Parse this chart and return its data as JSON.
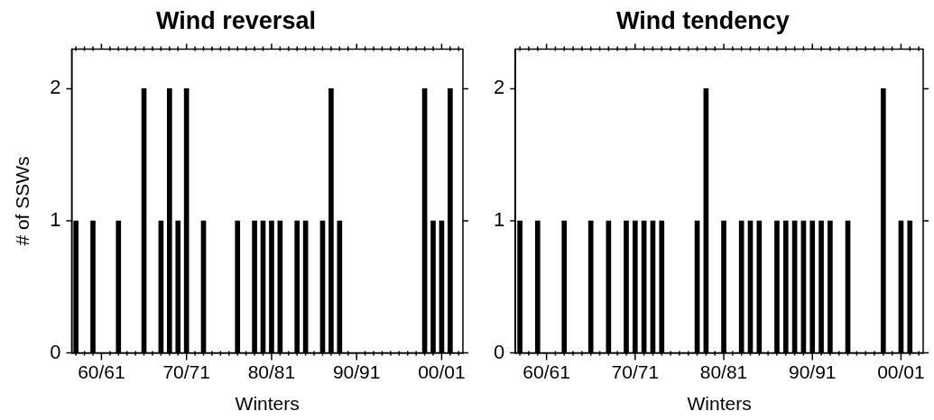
{
  "chart_data": [
    {
      "type": "bar",
      "title": "Wind reversal",
      "xlabel": "Winters",
      "ylabel": "# of SSWs",
      "color": "#000000",
      "categories": [
        null,
        null,
        null,
        "60/61",
        null,
        null,
        null,
        null,
        null,
        null,
        null,
        null,
        null,
        "70/71",
        null,
        null,
        null,
        null,
        null,
        null,
        null,
        null,
        null,
        "80/81",
        null,
        null,
        null,
        null,
        null,
        null,
        null,
        null,
        null,
        "90/91",
        null,
        null,
        null,
        null,
        null,
        null,
        null,
        null,
        null,
        "00/01",
        null,
        null
      ],
      "values": [
        1,
        0,
        1,
        0,
        0,
        1,
        0,
        0,
        2,
        0,
        1,
        2,
        1,
        2,
        0,
        1,
        0,
        0,
        0,
        1,
        0,
        1,
        1,
        1,
        1,
        0,
        1,
        1,
        0,
        1,
        2,
        1,
        0,
        0,
        0,
        0,
        0,
        0,
        0,
        0,
        0,
        2,
        1,
        1,
        2,
        0
      ],
      "ylim": [
        0,
        2.3
      ],
      "yticks": [
        0,
        1,
        2
      ]
    },
    {
      "type": "bar",
      "title": "Wind tendency",
      "xlabel": "Winters",
      "color": "#000000",
      "categories": [
        null,
        null,
        null,
        "60/61",
        null,
        null,
        null,
        null,
        null,
        null,
        null,
        null,
        null,
        "70/71",
        null,
        null,
        null,
        null,
        null,
        null,
        null,
        null,
        null,
        "80/81",
        null,
        null,
        null,
        null,
        null,
        null,
        null,
        null,
        null,
        "90/91",
        null,
        null,
        null,
        null,
        null,
        null,
        null,
        null,
        null,
        "00/01",
        null,
        null
      ],
      "values": [
        1,
        0,
        1,
        0,
        0,
        1,
        0,
        0,
        1,
        0,
        1,
        0,
        1,
        1,
        1,
        1,
        1,
        0,
        0,
        0,
        1,
        2,
        0,
        1,
        0,
        1,
        1,
        1,
        0,
        1,
        1,
        1,
        1,
        1,
        1,
        1,
        0,
        1,
        0,
        0,
        0,
        2,
        0,
        1,
        1,
        0
      ],
      "ylim": [
        0,
        2.3
      ],
      "yticks": [
        0,
        1,
        2
      ]
    }
  ]
}
